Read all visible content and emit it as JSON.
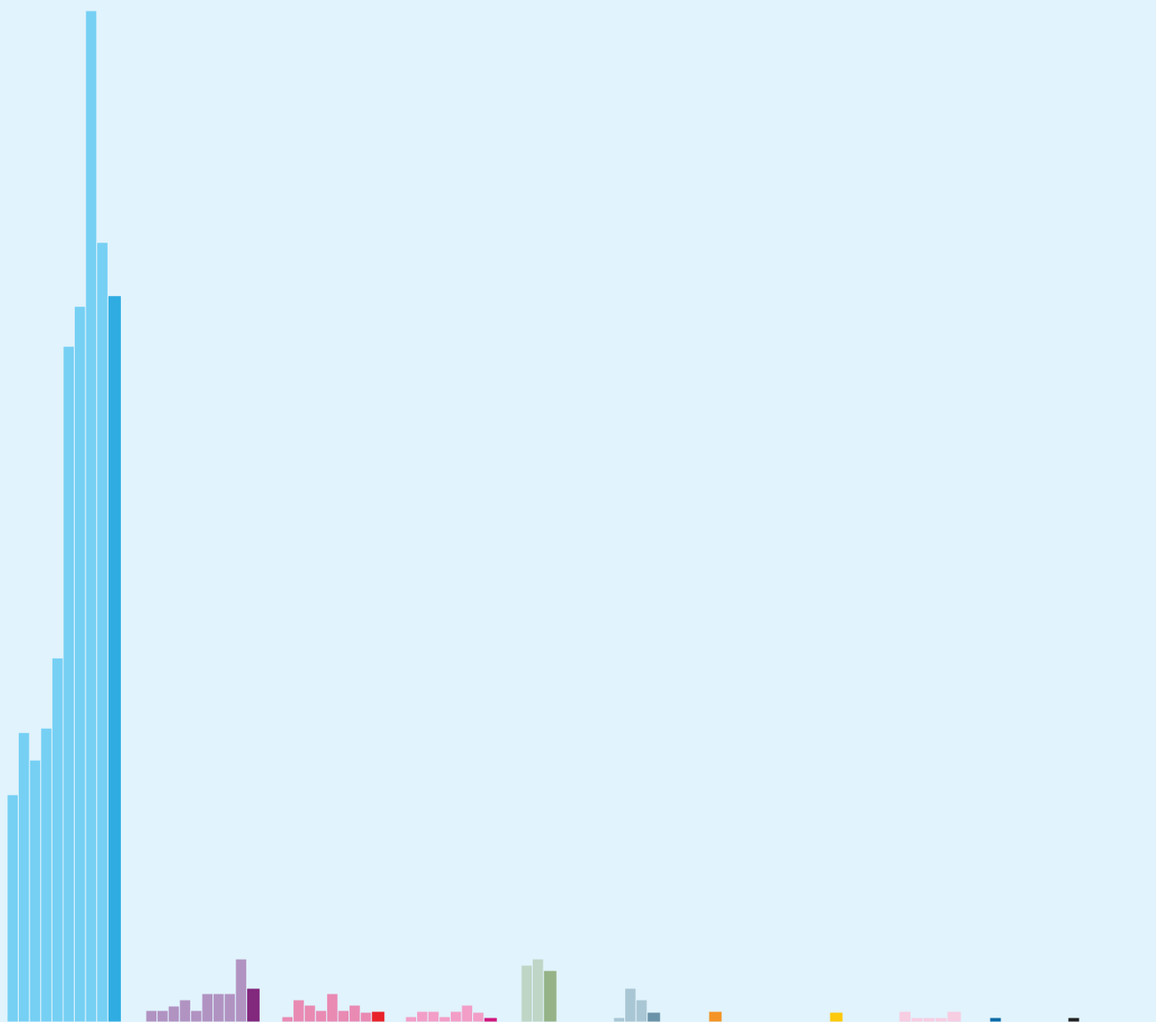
{
  "chart_data": {
    "type": "bar",
    "title": "",
    "xlabel": "",
    "ylabel": "",
    "ylim": [
      0,
      1140
    ],
    "grid": false,
    "legend": "none",
    "background_color": "#e1f3fc",
    "groups": [
      {
        "base_color": "#76d0f4",
        "highlight_color": "#2fade2",
        "values": [
          256,
          326,
          295,
          331,
          410,
          761,
          806,
          1139,
          878
        ],
        "highlight_value": 818
      },
      {
        "base_color": "#b193c2",
        "highlight_color": "#82287d",
        "values": [
          13,
          13,
          18,
          25,
          13,
          32,
          32,
          32,
          71
        ],
        "highlight_value": 38
      },
      {
        "base_color": "#e98ab3",
        "highlight_color": "#e82228",
        "values": [
          6,
          25,
          19,
          13,
          32,
          13,
          19,
          11
        ],
        "highlight_value": 12
      },
      {
        "base_color": "#f29ec7",
        "highlight_color": "#d0157d",
        "values": [
          6,
          12,
          12,
          6,
          12,
          19,
          11
        ],
        "highlight_value": 5
      },
      {
        "base_color": "#bfd5c6",
        "highlight_color": "#95b387",
        "values": [
          64,
          71
        ],
        "highlight_value": 58
      },
      {
        "base_color": "#a9c6d4",
        "highlight_color": "#6b93a8",
        "values": [
          5,
          38,
          25
        ],
        "highlight_value": 11
      },
      {
        "base_color": "#f39425",
        "highlight_color": "#f39425",
        "values": [],
        "highlight_value": 12
      },
      {
        "base_color": "#fdc90c",
        "highlight_color": "#fdc90c",
        "values": [],
        "highlight_value": 11
      },
      {
        "base_color": "#f7cde2",
        "highlight_color": "#f7cde2",
        "values": [
          12,
          5,
          5,
          5
        ],
        "highlight_value": 12
      },
      {
        "base_color": "#0b6aa6",
        "highlight_color": "#0b6aa6",
        "values": [],
        "highlight_value": 5
      },
      {
        "base_color": "#222222",
        "highlight_color": "#222222",
        "values": [],
        "highlight_value": 5
      }
    ]
  }
}
